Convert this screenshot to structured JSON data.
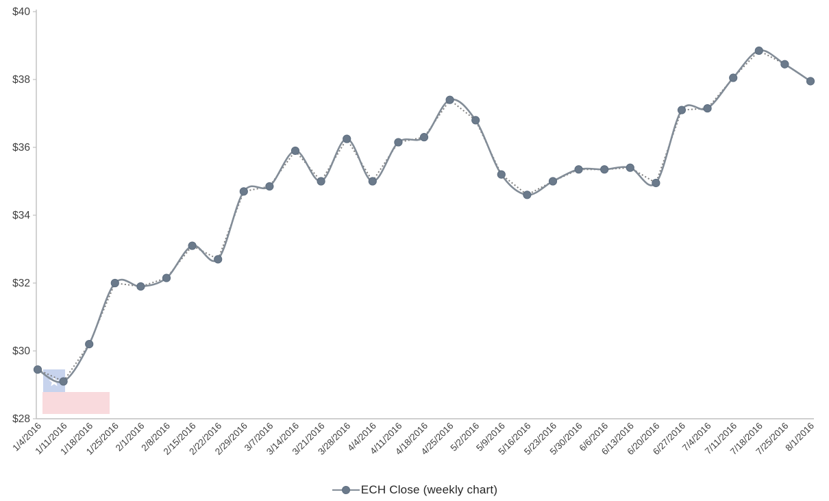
{
  "chart_data": {
    "type": "line",
    "title": "",
    "xlabel": "",
    "ylabel": "",
    "categories": [
      "1/4/2016",
      "1/11/2016",
      "1/18/2016",
      "1/25/2016",
      "2/1/2016",
      "2/8/2016",
      "2/15/2016",
      "2/22/2016",
      "2/29/2016",
      "3/7/2016",
      "3/14/2016",
      "3/21/2016",
      "3/28/2016",
      "4/4/2016",
      "4/11/2016",
      "4/18/2016",
      "4/25/2016",
      "5/2/2016",
      "5/9/2016",
      "5/16/2016",
      "5/23/2016",
      "5/30/2016",
      "6/6/2016",
      "6/13/2016",
      "6/20/2016",
      "6/27/2016",
      "7/4/2016",
      "7/11/2016",
      "7/18/2016",
      "7/25/2016",
      "8/1/2016"
    ],
    "series": [
      {
        "name": "ECH Close (weekly chart)",
        "values": [
          29.45,
          29.1,
          30.2,
          32.0,
          31.9,
          32.15,
          33.1,
          32.7,
          34.7,
          34.85,
          35.9,
          35.0,
          36.25,
          35.0,
          36.15,
          36.3,
          37.4,
          36.8,
          35.2,
          34.6,
          35.0,
          35.35,
          35.35,
          35.4,
          34.95,
          37.1,
          37.15,
          38.05,
          38.85,
          38.45,
          37.95
        ],
        "line": "smoothed-solid",
        "trend": "dotted-straight"
      }
    ],
    "ylim": [
      28,
      40
    ],
    "ytick_step": 2,
    "ytick_labels": [
      "$28",
      "$30",
      "$32",
      "$34",
      "$36",
      "$38",
      "$40"
    ],
    "grid": false,
    "legend_position": "bottom",
    "x_label_rotation_deg": -45
  },
  "legend": {
    "label": "ECH Close (weekly chart)"
  },
  "colors": {
    "series_line": "#828c97",
    "series_marker_fill": "#6b7a8b",
    "series_marker_stroke": "#5d6d7f",
    "trend_dotted": "#7f7f7f",
    "axis_line": "#bfbfbf",
    "tick_label": "#404040",
    "legend_text": "#262626"
  },
  "watermark": {
    "name": "chile-flag",
    "blue": "#c7d3ed",
    "red": "#f9dadd",
    "star": "#ffffff"
  }
}
